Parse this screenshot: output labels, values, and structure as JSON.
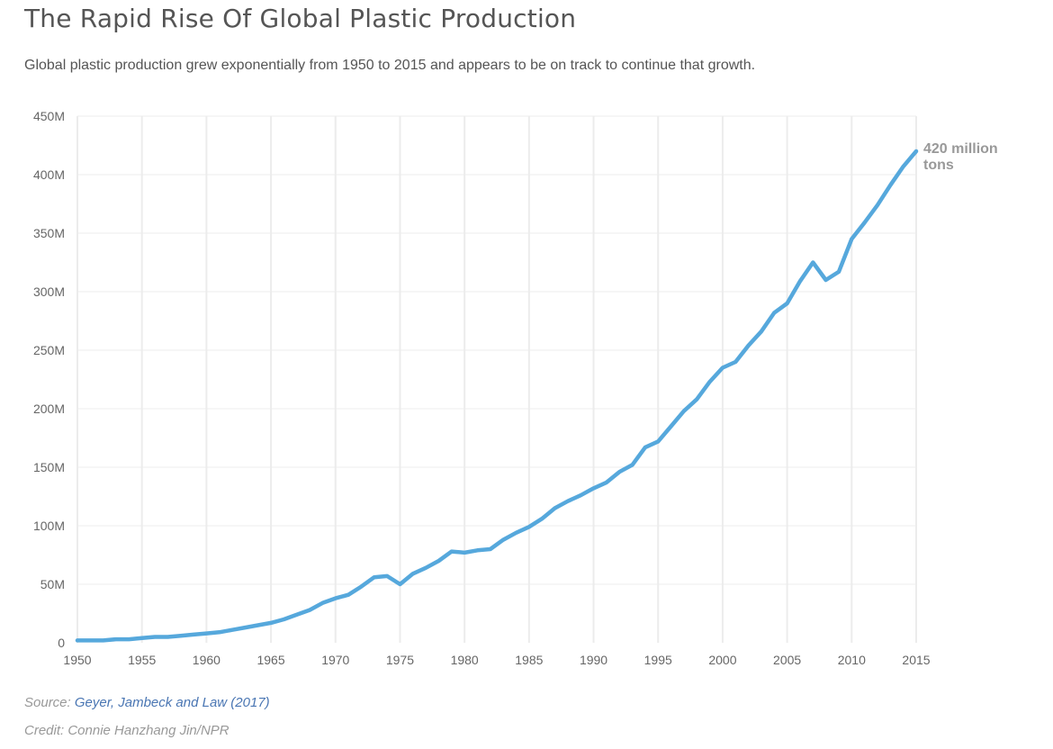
{
  "title": "The Rapid Rise Of Global Plastic Production",
  "subtitle": "Global plastic production grew exponentially from 1950 to 2015 and appears to be on track to continue that growth.",
  "source_prefix": "Source:",
  "source_name": "Geyer, Jambeck and Law (2017)",
  "credit": "Credit: Connie Hanzhang Jin/NPR",
  "colors": {
    "line": "#56a8dc",
    "gridline": "#ececec",
    "background": "#ffffff"
  },
  "chart_data": {
    "type": "line",
    "title": "The Rapid Rise Of Global Plastic Production",
    "xlabel": "",
    "ylabel": "",
    "xlim": [
      1950,
      2015
    ],
    "ylim": [
      0,
      450000000
    ],
    "grid": true,
    "x_ticks": [
      1950,
      1955,
      1960,
      1965,
      1970,
      1975,
      1980,
      1985,
      1990,
      1995,
      2000,
      2005,
      2010,
      2015
    ],
    "x_tick_labels": [
      "1950",
      "1955",
      "1960",
      "1965",
      "1970",
      "1975",
      "1980",
      "1985",
      "1990",
      "1995",
      "2000",
      "2005",
      "2010",
      "2015"
    ],
    "y_ticks": [
      0,
      50000000,
      100000000,
      150000000,
      200000000,
      250000000,
      300000000,
      350000000,
      400000000,
      450000000
    ],
    "y_tick_labels": [
      "0",
      "50M",
      "100M",
      "150M",
      "200M",
      "250M",
      "300M",
      "350M",
      "400M",
      "450M"
    ],
    "end_label": [
      "420 million",
      "tons"
    ],
    "series": [
      {
        "x": [
          1950,
          1951,
          1952,
          1953,
          1954,
          1955,
          1956,
          1957,
          1958,
          1959,
          1960,
          1961,
          1962,
          1963,
          1964,
          1965,
          1966,
          1967,
          1968,
          1969,
          1970,
          1971,
          1972,
          1973,
          1974,
          1975,
          1976,
          1977,
          1978,
          1979,
          1980,
          1981,
          1982,
          1983,
          1984,
          1985,
          1986,
          1987,
          1988,
          1989,
          1990,
          1991,
          1992,
          1993,
          1994,
          1995,
          1996,
          1997,
          1998,
          1999,
          2000,
          2001,
          2002,
          2003,
          2004,
          2005,
          2006,
          2007,
          2008,
          2009,
          2010,
          2011,
          2012,
          2013,
          2014,
          2015
        ],
        "values": [
          2000000,
          2000000,
          2000000,
          3000000,
          3000000,
          4000000,
          5000000,
          5000000,
          6000000,
          7000000,
          8000000,
          9000000,
          11000000,
          13000000,
          15000000,
          17000000,
          20000000,
          24000000,
          28000000,
          34000000,
          38000000,
          41000000,
          48000000,
          56000000,
          57000000,
          50000000,
          59000000,
          64000000,
          70000000,
          78000000,
          77000000,
          79000000,
          80000000,
          88000000,
          94000000,
          99000000,
          106000000,
          115000000,
          121000000,
          126000000,
          132000000,
          137000000,
          146000000,
          152000000,
          167000000,
          172000000,
          185000000,
          198000000,
          208000000,
          223000000,
          235000000,
          240000000,
          254000000,
          266000000,
          282000000,
          290000000,
          309000000,
          325000000,
          310000000,
          317000000,
          345000000,
          359000000,
          374000000,
          391000000,
          407000000,
          420000000
        ]
      }
    ]
  }
}
